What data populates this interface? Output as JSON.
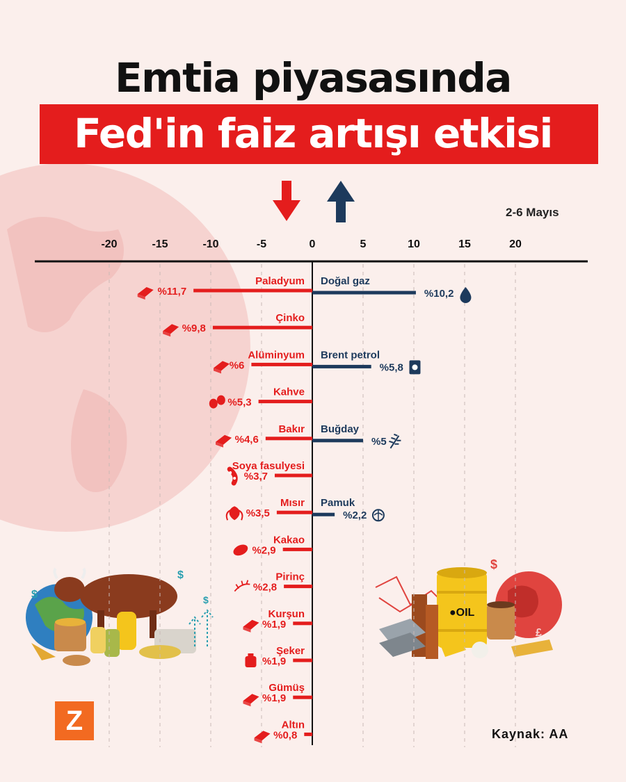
{
  "header": {
    "title_line1": "Emtia piyasasında",
    "title_line2": "Fed'in faiz artışı etkisi",
    "date": "2-6 Mayıs"
  },
  "footer": {
    "source": "Kaynak: AA",
    "logo_letter": "Z"
  },
  "colors": {
    "negative": "#e41d1d",
    "positive": "#1d3a5c",
    "background": "#fbefec"
  },
  "chart_data": {
    "type": "bar",
    "orientation": "horizontal",
    "xlim": [
      -20,
      20
    ],
    "ticks": [
      -20,
      -15,
      -10,
      -5,
      0,
      5,
      10,
      15,
      20
    ],
    "tick_labels": [
      "-20",
      "-15",
      "-10",
      "-5",
      "0",
      "5",
      "10",
      "15",
      "20"
    ],
    "negative": [
      {
        "name": "Paladyum",
        "value": -11.7,
        "label": "%11,7",
        "icon": "bars-icon"
      },
      {
        "name": "Çinko",
        "value": -9.8,
        "label": "%9,8",
        "icon": "ore-icon"
      },
      {
        "name": "Alüminyum",
        "value": -6,
        "label": "%6",
        "icon": "blocks-icon"
      },
      {
        "name": "Kahve",
        "value": -5.3,
        "label": "%5,3",
        "icon": "coffee-beans-icon"
      },
      {
        "name": "Bakır",
        "value": -4.6,
        "label": "%4,6",
        "icon": "copper-bar-icon"
      },
      {
        "name": "Soya fasulyesi",
        "value": -3.7,
        "label": "%3,7",
        "icon": "soybean-icon"
      },
      {
        "name": "Mısır",
        "value": -3.5,
        "label": "%3,5",
        "icon": "corn-icon"
      },
      {
        "name": "Kakao",
        "value": -2.9,
        "label": "%2,9",
        "icon": "cocoa-icon"
      },
      {
        "name": "Pirinç",
        "value": -2.8,
        "label": "%2,8",
        "icon": "rice-icon"
      },
      {
        "name": "Kurşun",
        "value": -1.9,
        "label": "%1,9",
        "icon": "lead-bars-icon"
      },
      {
        "name": "Şeker",
        "value": -1.9,
        "label": "%1,9",
        "icon": "sugar-sack-icon"
      },
      {
        "name": "Gümüş",
        "value": -1.9,
        "label": "%1,9",
        "icon": "silver-bar-icon"
      },
      {
        "name": "Altın",
        "value": -0.8,
        "label": "%0,8",
        "icon": "gold-bars-icon"
      }
    ],
    "positive": [
      {
        "name": "Doğal gaz",
        "value": 10.2,
        "label": "%10,2",
        "icon": "flame-drop-icon",
        "row": 0
      },
      {
        "name": "Brent petrol",
        "value": 5.8,
        "label": "%5,8",
        "icon": "oil-barrel-icon",
        "row": 2
      },
      {
        "name": "Buğday",
        "value": 5,
        "label": "%5",
        "icon": "wheat-icon",
        "row": 4
      },
      {
        "name": "Pamuk",
        "value": 2.2,
        "label": "%2,2",
        "icon": "cotton-icon",
        "row": 6
      }
    ]
  }
}
